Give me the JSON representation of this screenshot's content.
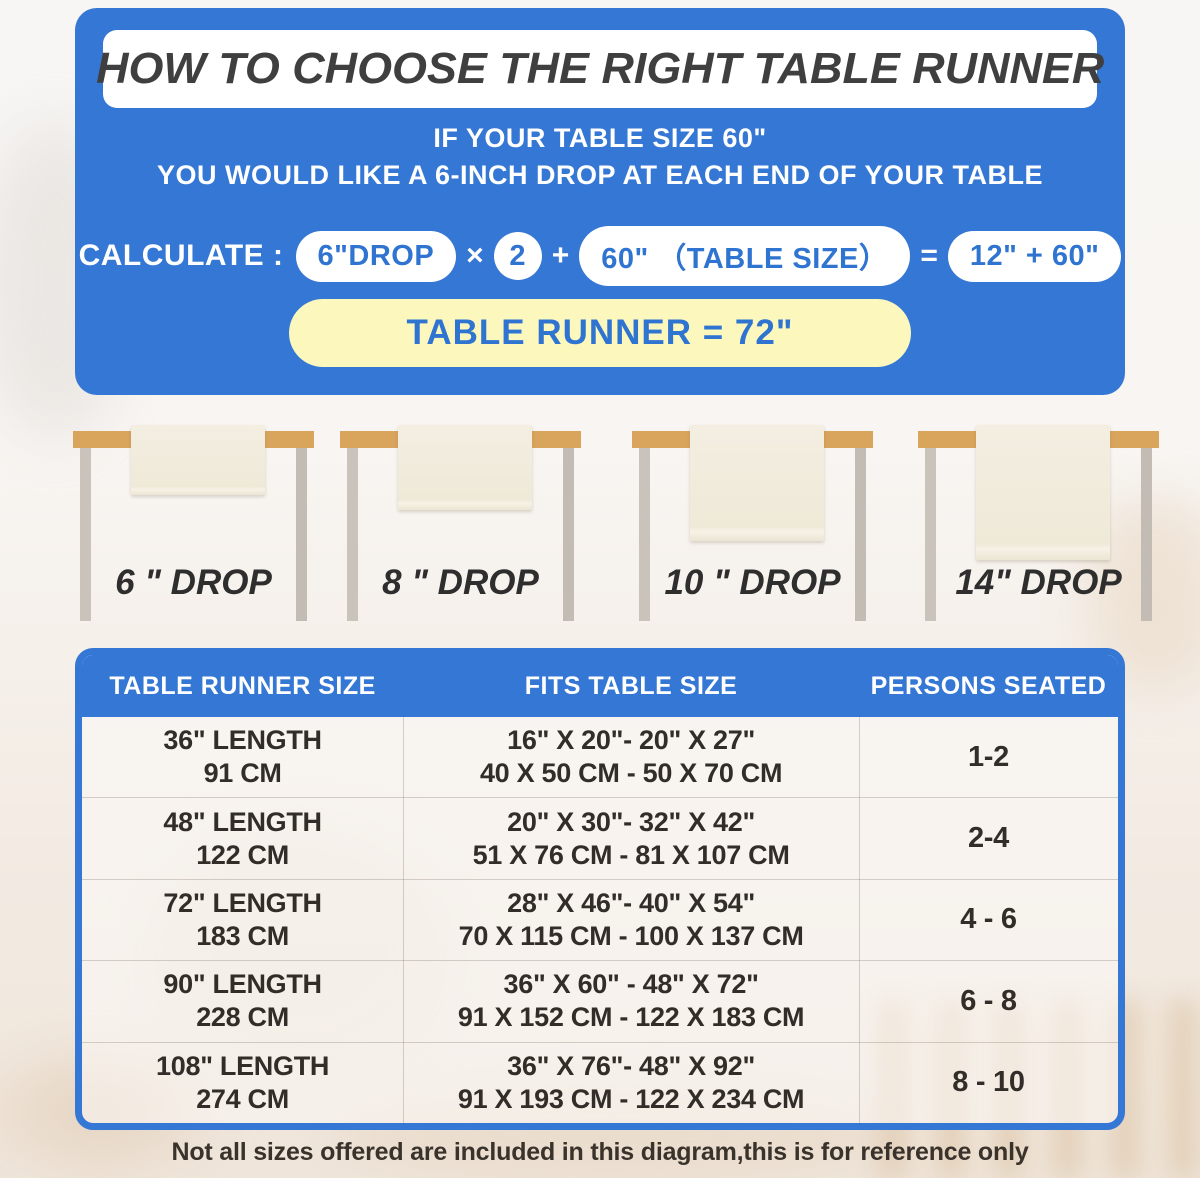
{
  "header": {
    "title": "HOW TO CHOOSE THE RIGHT TABLE RUNNER",
    "subtitle_line1": "IF YOUR TABLE SIZE 60\"",
    "subtitle_line2": "YOU WOULD LIKE A 6-INCH DROP AT EACH END OF YOUR TABLE"
  },
  "calculation": {
    "label": "CALCULATE :",
    "drop_pill": "6\"DROP",
    "times_sign": "×",
    "multiplier": "2",
    "plus_sign": "+",
    "table_size_pill": "60\" （TABLE SIZE）",
    "equals_sign": "=",
    "sum_pill": "12\" + 60\"",
    "result": "TABLE RUNNER = 72\""
  },
  "drops": [
    {
      "label": "6 \" DROP"
    },
    {
      "label": "8 \" DROP"
    },
    {
      "label": "10 \" DROP"
    },
    {
      "label": "14\" DROP"
    }
  ],
  "size_table": {
    "headers": [
      "TABLE RUNNER SIZE",
      "FITS TABLE SIZE",
      "PERSONS SEATED"
    ],
    "rows": [
      {
        "length_in": "36\" LENGTH",
        "length_cm": "91 CM",
        "fits_in": "16\" X 20\"- 20\" X 27\"",
        "fits_cm": "40 X 50 CM - 50 X 70 CM",
        "persons": "1-2"
      },
      {
        "length_in": "48\" LENGTH",
        "length_cm": "122 CM",
        "fits_in": "20\" X 30\"- 32\" X 42\"",
        "fits_cm": "51 X 76 CM - 81 X 107 CM",
        "persons": "2-4"
      },
      {
        "length_in": "72\" LENGTH",
        "length_cm": "183 CM",
        "fits_in": "28\" X 46\"- 40\" X 54\"",
        "fits_cm": "70 X 115 CM - 100 X 137 CM",
        "persons": "4 - 6"
      },
      {
        "length_in": "90\" LENGTH",
        "length_cm": "228 CM",
        "fits_in": "36\" X 60\" - 48\" X 72\"",
        "fits_cm": "91 X 152 CM - 122 X 183 CM",
        "persons": "6 - 8"
      },
      {
        "length_in": "108\" LENGTH",
        "length_cm": "274 CM",
        "fits_in": "36\" X 76\"- 48\" X 92\"",
        "fits_cm": "91 X 193 CM - 122 X 234 CM",
        "persons": "8 - 10"
      }
    ]
  },
  "footer": {
    "note": "Not all sizes offered are included in this diagram,this is for reference only"
  },
  "colors": {
    "panel_blue": "#3577d4",
    "result_yellow": "#fbf7bd",
    "calc_text_blue": "#2f74d0",
    "tabletop_wood": "#d9a45c",
    "leg_gray": "#c9c3bc",
    "runner_cream": "#f1ebdc",
    "title_gray": "#3f3f3f",
    "table_text": "#322d28"
  }
}
